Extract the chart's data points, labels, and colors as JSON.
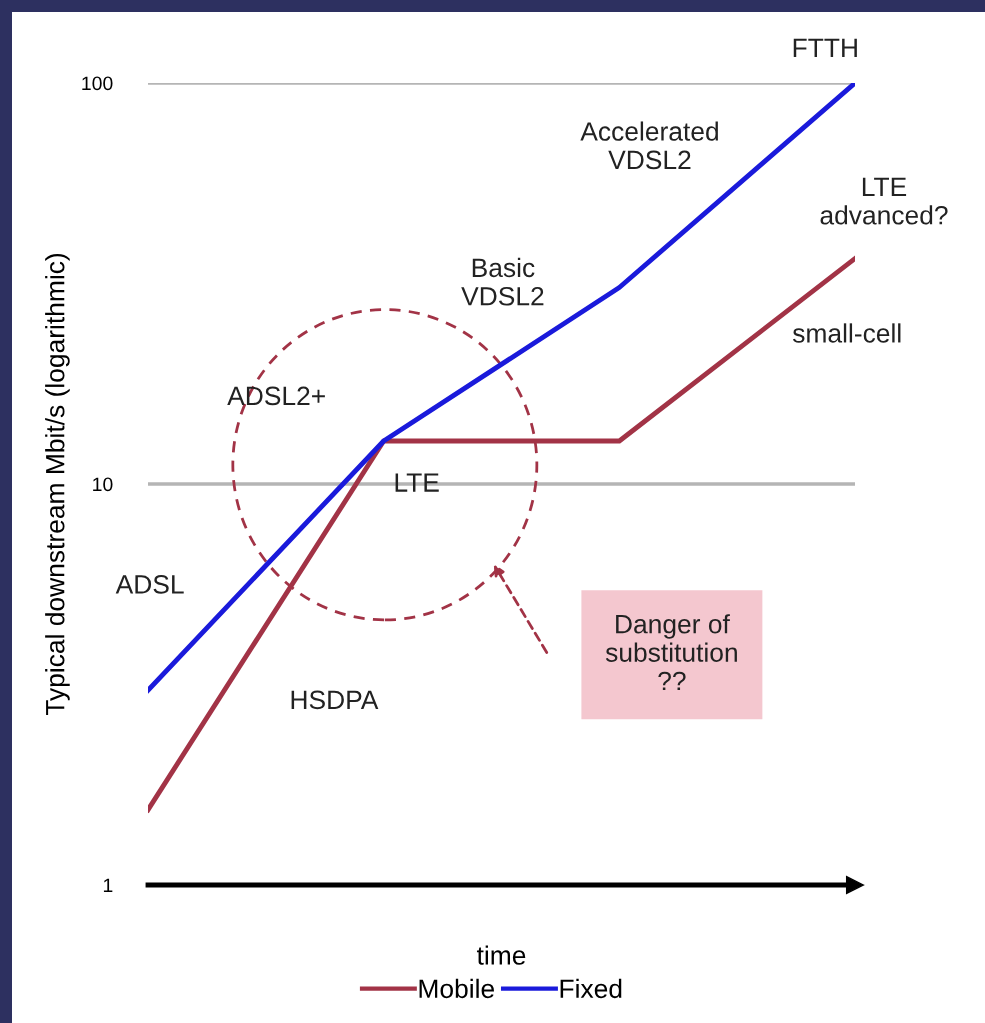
{
  "chart_data": {
    "type": "line",
    "xlabel": "time",
    "ylabel": "Typical downstream Mbit/s (logarithmic)",
    "categories": [
      null,
      null,
      null,
      null
    ],
    "ylim": [
      1,
      100
    ],
    "yticks": [
      1,
      10,
      100
    ],
    "log": true,
    "grid": "y",
    "legend": "bottom",
    "series": [
      {
        "name": "Mobile",
        "color": "#a23346",
        "values": [
          1.54,
          12.8,
          12.8,
          36.5
        ]
      },
      {
        "name": "Fixed",
        "color": "#1a1adb",
        "values": [
          3.06,
          12.8,
          30.9,
          100
        ]
      }
    ],
    "annotations": [
      "FTTH",
      "Accelerated\nVDSL2",
      "LTE\nadvanced?",
      "Basic\nVDSL2",
      "small-cell",
      "ADSL2+",
      "LTE",
      "ADSL",
      "HSDPA",
      "Danger of\nsubstitution\n??"
    ]
  }
}
